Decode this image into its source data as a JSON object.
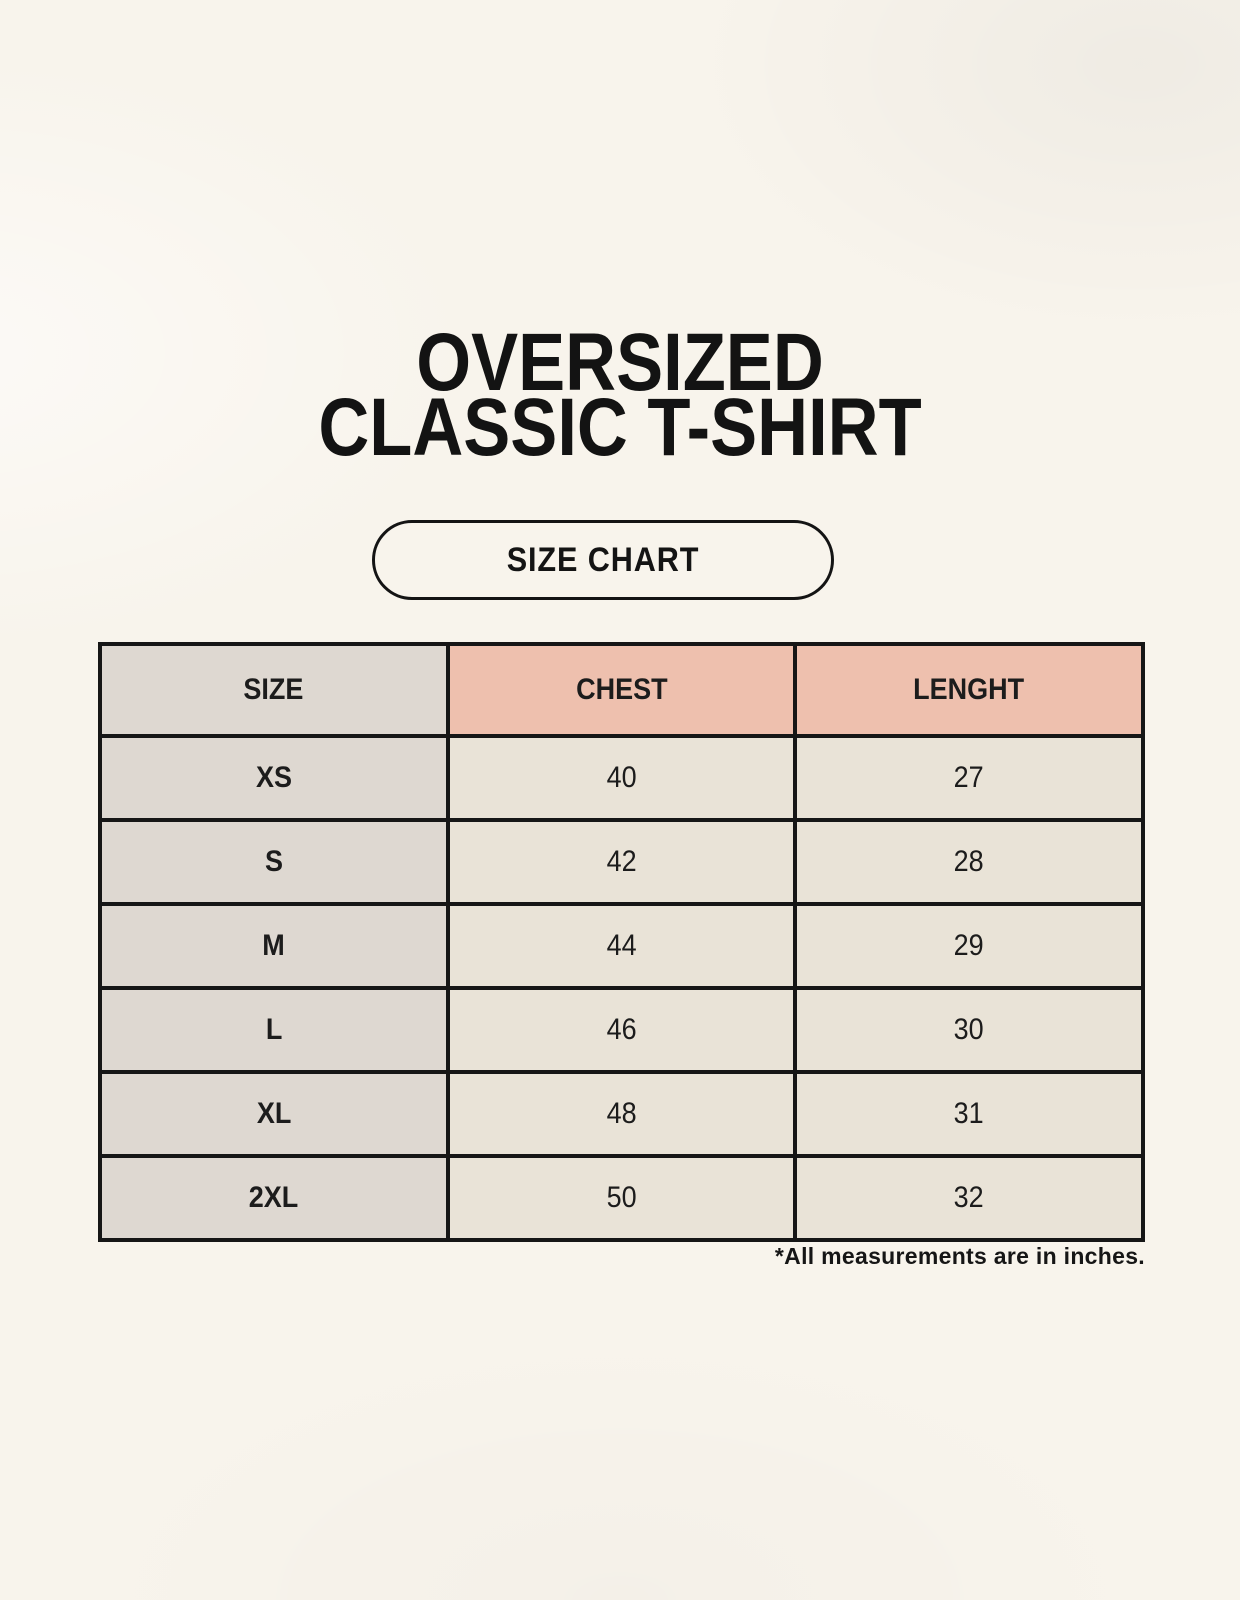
{
  "page": {
    "title_lines": [
      "OVERSIZED",
      "CLASSIC T-SHIRT"
    ],
    "badge_label": "SIZE CHART",
    "footnote": "*All measurements are in inches."
  },
  "colors": {
    "background": "#f8f4ec",
    "header_accent_pink": "#eec0ae",
    "size_column_gray": "#ded8d1",
    "value_cell_cream": "#e9e3d7",
    "border_black": "#161616",
    "text_black": "#1c1c1c"
  },
  "table": {
    "columns": [
      "SIZE",
      "CHEST",
      "LENGHT"
    ],
    "rows": [
      {
        "size": "XS",
        "chest": "40",
        "length": "27"
      },
      {
        "size": "S",
        "chest": "42",
        "length": "28"
      },
      {
        "size": "M",
        "chest": "44",
        "length": "29"
      },
      {
        "size": "L",
        "chest": "46",
        "length": "30"
      },
      {
        "size": "XL",
        "chest": "48",
        "length": "31"
      },
      {
        "size": "2XL",
        "chest": "50",
        "length": "32"
      }
    ]
  },
  "chart_data": {
    "type": "table",
    "title": "OVERSIZED CLASSIC T-SHIRT",
    "subtitle": "SIZE CHART",
    "columns": [
      "SIZE",
      "CHEST",
      "LENGHT"
    ],
    "rows": [
      [
        "XS",
        "40",
        "27"
      ],
      [
        "S",
        "42",
        "28"
      ],
      [
        "M",
        "44",
        "29"
      ],
      [
        "L",
        "46",
        "30"
      ],
      [
        "XL",
        "48",
        "31"
      ],
      [
        "2XL",
        "50",
        "32"
      ]
    ],
    "note": "*All measurements are in inches.",
    "units": "inches"
  }
}
